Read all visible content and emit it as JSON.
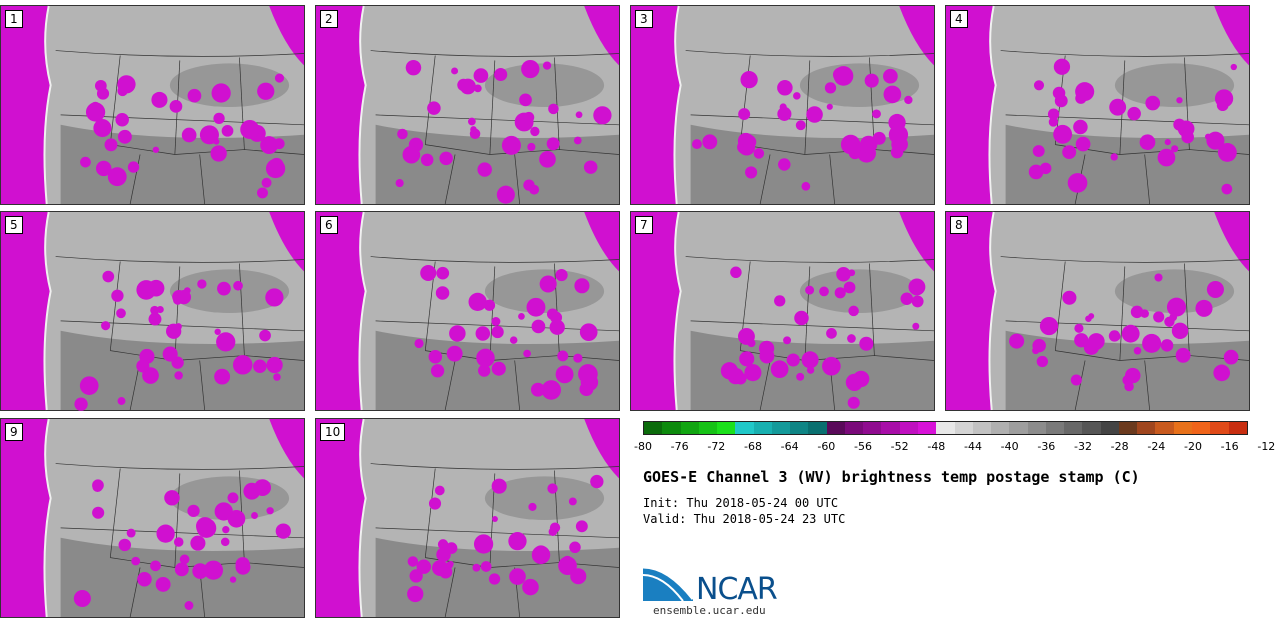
{
  "panels": [
    "1",
    "2",
    "3",
    "4",
    "5",
    "6",
    "7",
    "8",
    "9",
    "10"
  ],
  "colorbar": {
    "colors": [
      "#0b6b0b",
      "#0d8a0d",
      "#11a511",
      "#16c216",
      "#1be01b",
      "#20c8c8",
      "#18b0b0",
      "#149a9a",
      "#0f8585",
      "#0a7070",
      "#5a0a5a",
      "#7a0a7a",
      "#900c90",
      "#a80ea8",
      "#c010c0",
      "#d812d8",
      "#e8e8e8",
      "#d4d4d4",
      "#c2c2c2",
      "#b0b0b0",
      "#9e9e9e",
      "#8c8c8c",
      "#7a7a7a",
      "#686868",
      "#565656",
      "#444444",
      "#6b3a1e",
      "#a0461e",
      "#c85a1e",
      "#e8711a",
      "#f0641a",
      "#e04a18",
      "#c82e10"
    ],
    "tick_labels": [
      "-80",
      "-76",
      "-72",
      "-68",
      "-64",
      "-60",
      "-56",
      "-52",
      "-48",
      "-44",
      "-40",
      "-36",
      "-32",
      "-28",
      "-24",
      "-20",
      "-16",
      "-12"
    ]
  },
  "title": "GOES-E Channel 3 (WV) brightness temp postage stamp (C)",
  "init_line": "Init: Thu 2018-05-24 00 UTC",
  "valid_line": "Valid: Thu 2018-05-24 23 UTC",
  "logo": {
    "text": "NCAR",
    "url": "ensemble.ucar.edu"
  }
}
